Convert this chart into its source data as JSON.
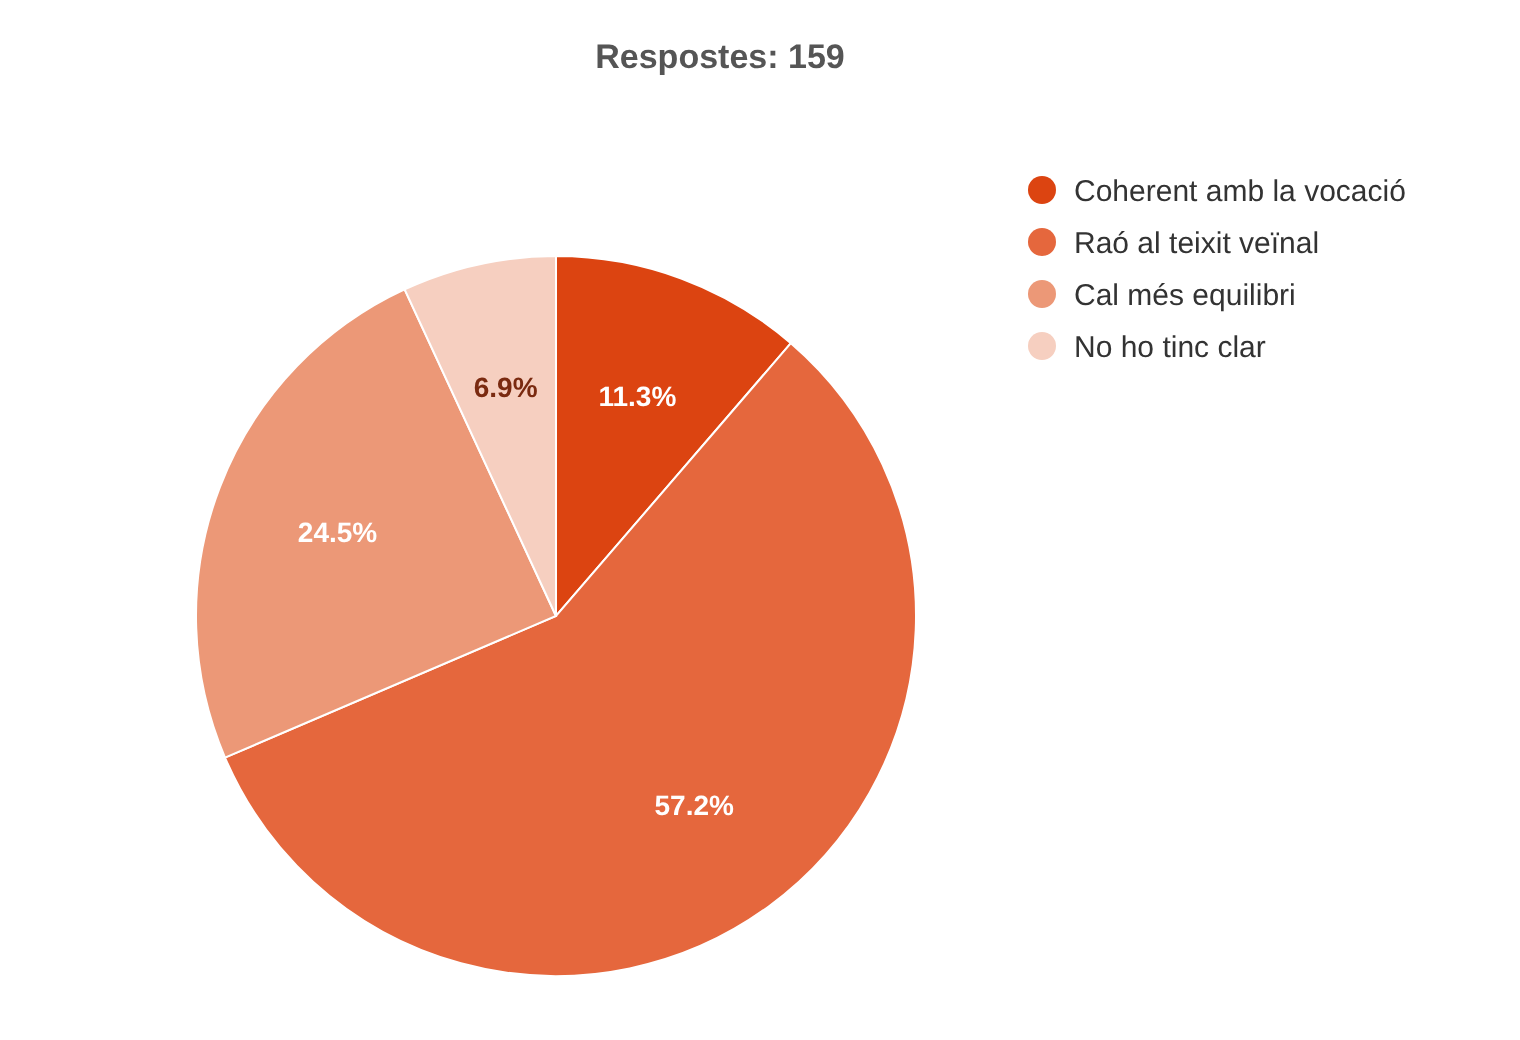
{
  "chart_data": {
    "type": "pie",
    "title": "Respostes: 159",
    "categories": [
      "Coherent amb la vocació",
      "Raó al teixit veïnal",
      "Cal més equilibri",
      "No ho tinc clar"
    ],
    "values": [
      11.3,
      57.2,
      24.5,
      6.9
    ],
    "colors": [
      "#dc4411",
      "#e5673d",
      "#ec9877",
      "#f6cfc0"
    ],
    "value_labels": [
      "11.3%",
      "57.2%",
      "24.5%",
      "6.9%"
    ],
    "legend": "top right"
  }
}
